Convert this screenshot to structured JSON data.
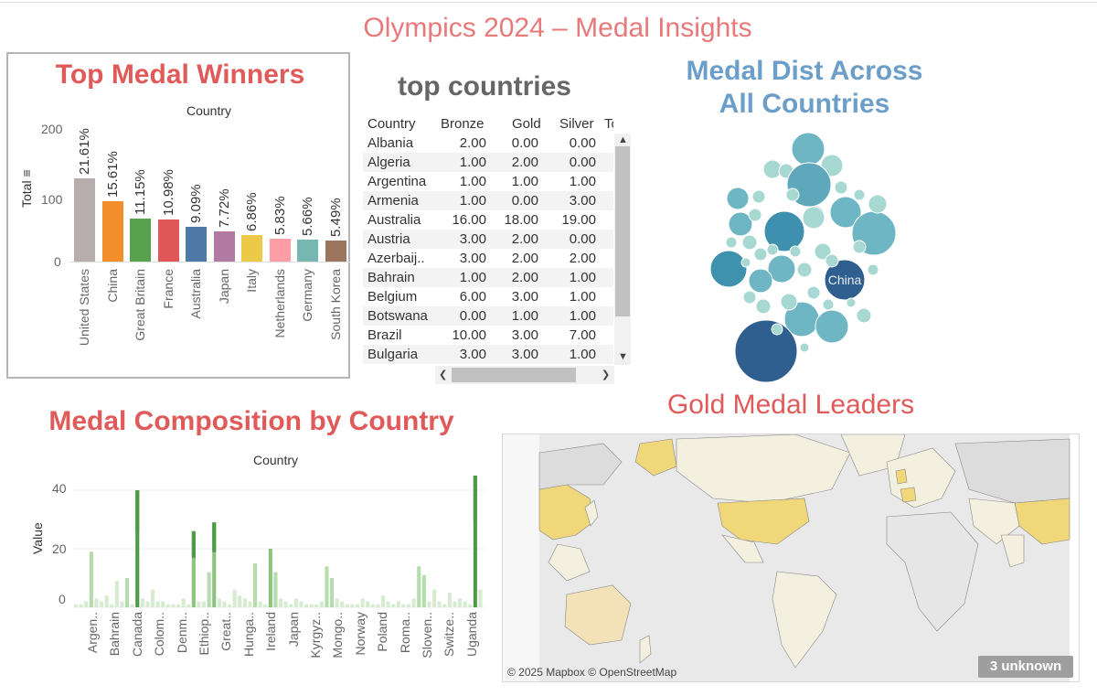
{
  "dashboard_title": "Olympics 2024 – Medal Insights",
  "top_winners": {
    "title": "Top Medal Winners",
    "header": "Country",
    "y_axis_label": "Total ≡",
    "y_ticks": [
      "200",
      "100",
      "0"
    ],
    "colors": [
      "#b8adad",
      "#f28e2b",
      "#59a14f",
      "#e15759",
      "#4e79a7",
      "#b07aa1",
      "#edc948",
      "#ff9da7",
      "#76b7b2",
      "#9c755f"
    ]
  },
  "top_countries": {
    "title": "top countries",
    "columns": [
      "Country",
      "Bronze",
      "Gold",
      "Silver",
      "To"
    ],
    "rows": [
      [
        "Albania",
        "2.00",
        "0.00",
        "0.00"
      ],
      [
        "Algeria",
        "1.00",
        "2.00",
        "0.00"
      ],
      [
        "Argentina",
        "1.00",
        "1.00",
        "1.00"
      ],
      [
        "Armenia",
        "1.00",
        "0.00",
        "3.00"
      ],
      [
        "Australia",
        "16.00",
        "18.00",
        "19.00"
      ],
      [
        "Austria",
        "3.00",
        "2.00",
        "0.00"
      ],
      [
        "Azerbaij..",
        "3.00",
        "2.00",
        "2.00"
      ],
      [
        "Bahrain",
        "1.00",
        "2.00",
        "1.00"
      ],
      [
        "Belgium",
        "6.00",
        "3.00",
        "1.00"
      ],
      [
        "Botswana",
        "0.00",
        "1.00",
        "1.00"
      ],
      [
        "Brazil",
        "10.00",
        "3.00",
        "7.00"
      ],
      [
        "Bulgaria",
        "3.00",
        "3.00",
        "1.00"
      ]
    ],
    "scroll_up": "▲",
    "scroll_down": "▼",
    "scroll_left": "❮",
    "scroll_right": "❯"
  },
  "medal_dist": {
    "title_line1": "Medal Dist Across",
    "title_line2": "All Countries",
    "highlight_label": "China"
  },
  "composition": {
    "title": "Medal Composition by Country",
    "header": "Country",
    "y_axis_label": "Value",
    "y_ticks": [
      "40",
      "20",
      "0"
    ],
    "x_labels": [
      "Argen..",
      "Bahrain",
      "Canada",
      "Colom..",
      "Denm..",
      "Ethiop..",
      "Great..",
      "Hunga..",
      "Ireland",
      "Japan",
      "Kyrgyz..",
      "Mongo..",
      "Norway",
      "Poland",
      "Roma..",
      "Sloven..",
      "Switze..",
      "Uganda"
    ]
  },
  "gold_map": {
    "title": "Gold Medal Leaders",
    "attribution": "© 2025 Mapbox © OpenStreetMap",
    "unknown_badge": "3 unknown"
  },
  "chart_data": [
    {
      "type": "bar",
      "title": "Top Medal Winners",
      "xlabel": "Country",
      "ylabel": "Total",
      "ylim": [
        0,
        220
      ],
      "categories": [
        "United States",
        "China",
        "Great Britain",
        "France",
        "Australia",
        "Japan",
        "Italy",
        "Netherlands",
        "Germany",
        "South Korea"
      ],
      "values": [
        126,
        91,
        65,
        64,
        53,
        45,
        40,
        34,
        33,
        32
      ],
      "data_labels": [
        "21.61%",
        "15.61%",
        "11.15%",
        "10.98%",
        "9.09%",
        "7.72%",
        "6.86%",
        "5.83%",
        "5.66%",
        "5.49%"
      ]
    },
    {
      "type": "bar",
      "title": "Medal Composition by Country",
      "xlabel": "Country",
      "ylabel": "Value",
      "ylim": [
        0,
        45
      ],
      "series": [
        {
          "name": "",
          "values": [
            1,
            1,
            2,
            19,
            3,
            2,
            4,
            1,
            9,
            2,
            10,
            1,
            40,
            3,
            2,
            6,
            2,
            2,
            1,
            1,
            1,
            3,
            1,
            26,
            2,
            2,
            12,
            29,
            3,
            2,
            1,
            6,
            4,
            3,
            2,
            15,
            2,
            1,
            20,
            12,
            3,
            2,
            1,
            3,
            2,
            1,
            1,
            1,
            2,
            14,
            10,
            3,
            2,
            1,
            1,
            1,
            3,
            2,
            1,
            1,
            4,
            2,
            1,
            2,
            1,
            1,
            3,
            14,
            11,
            2,
            6,
            2,
            1,
            5,
            2,
            3,
            2,
            1,
            45,
            6
          ]
        }
      ]
    }
  ]
}
